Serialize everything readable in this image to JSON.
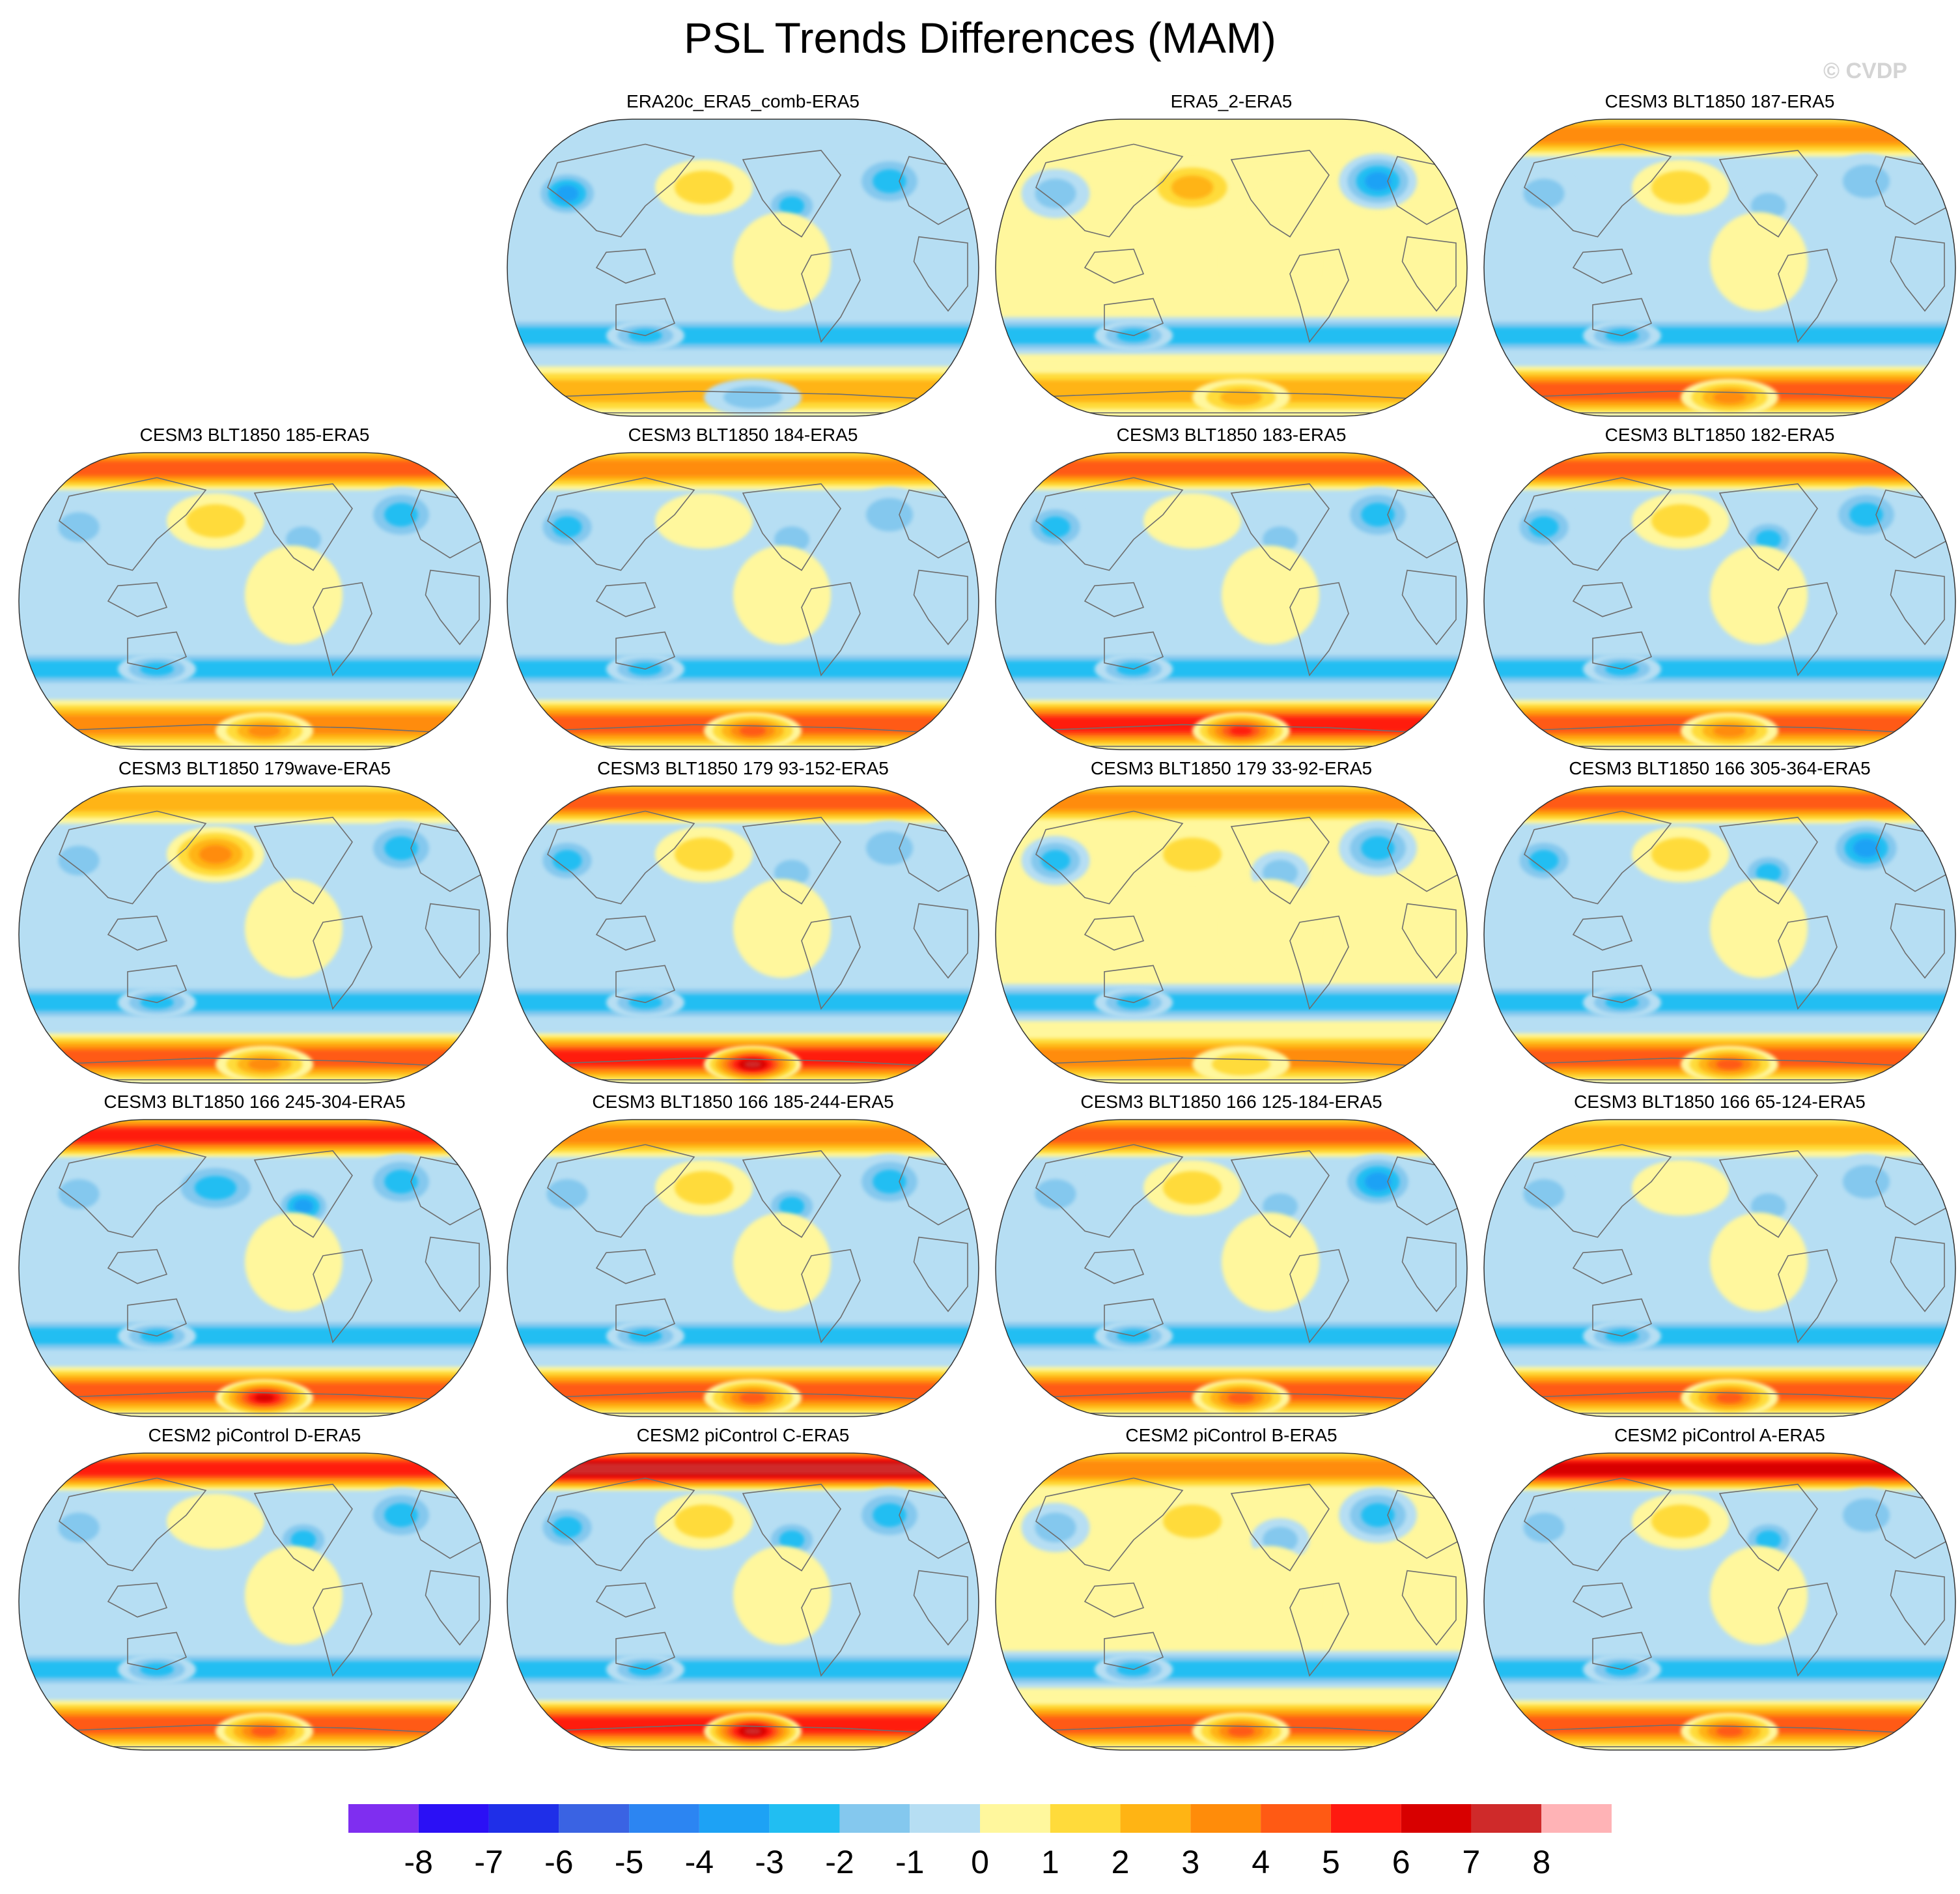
{
  "figure": {
    "title": "PSL Trends Differences (MAM)",
    "watermark": "© CVDP"
  },
  "colors": {
    "bins": [
      "#7f2ef0",
      "#2b10f5",
      "#1f2fe8",
      "#3a63e3",
      "#2c85f2",
      "#1da2f5",
      "#21bef2",
      "#84c8ee",
      "#b6def3",
      "#fff79d",
      "#ffdb3b",
      "#ffb414",
      "#ff8c0a",
      "#ff5a14",
      "#ff1a10",
      "#d80000",
      "#cf2a2a",
      "#ffb3b6"
    ],
    "outline": "#333333",
    "coast": "#6e6e6e"
  },
  "chart_data": {
    "type": "map-panel-grid",
    "projection": "robinson",
    "center_longitude": "pacific",
    "colorbar": {
      "ticks": [
        "-8",
        "-7",
        "-6",
        "-5",
        "-4",
        "-3",
        "-2",
        "-1",
        "0",
        "1",
        "2",
        "3",
        "4",
        "5",
        "6",
        "7",
        "8"
      ],
      "n_bins": 18
    },
    "panels": [
      {
        "title": "ERA20c_ERA5_comb-ERA5",
        "row": 0,
        "col": 1,
        "fields": {
          "np": -1,
          "tropics": -0.6,
          "so": 2.5,
          "ant": -2,
          "npac": 2,
          "natl": -3,
          "nam": -2.5,
          "asia": -4
        }
      },
      {
        "title": "ERA5_2-ERA5",
        "row": 0,
        "col": 2,
        "fields": {
          "np": 1,
          "tropics": 0.5,
          "so": 3,
          "ant": 3,
          "npac": 2.5,
          "natl": -4,
          "nam": 1,
          "asia": -1.5
        }
      },
      {
        "title": "CESM3 BLT1850 187-ERA5",
        "row": 0,
        "col": 3,
        "fields": {
          "np": 4,
          "tropics": -0.5,
          "so": 4.5,
          "ant": 3.5,
          "npac": 1.5,
          "natl": -2,
          "nam": -2,
          "asia": -2
        }
      },
      {
        "title": "CESM3 BLT1850 185-ERA5",
        "row": 1,
        "col": 0,
        "fields": {
          "np": 4.5,
          "tropics": -0.5,
          "so": 3.5,
          "ant": 4,
          "npac": 1.5,
          "natl": -2.5,
          "nam": -2,
          "asia": -2
        }
      },
      {
        "title": "CESM3 BLT1850 184-ERA5",
        "row": 1,
        "col": 1,
        "fields": {
          "np": 3.5,
          "tropics": -0.5,
          "so": 5,
          "ant": 5,
          "npac": 1,
          "natl": -2,
          "nam": -2,
          "asia": -2.5
        }
      },
      {
        "title": "CESM3 BLT1850 183-ERA5",
        "row": 1,
        "col": 2,
        "fields": {
          "np": 5,
          "tropics": -0.6,
          "so": 5.5,
          "ant": 5.5,
          "npac": 1,
          "natl": -3,
          "nam": -2,
          "asia": -2.5
        }
      },
      {
        "title": "CESM3 BLT1850 182-ERA5",
        "row": 1,
        "col": 3,
        "fields": {
          "np": 5,
          "tropics": -0.6,
          "so": 4.5,
          "ant": 4,
          "npac": 1.5,
          "natl": -3,
          "nam": -3,
          "asia": -2.5
        }
      },
      {
        "title": "CESM3 BLT1850 179wave-ERA5",
        "row": 2,
        "col": 0,
        "fields": {
          "np": 3,
          "tropics": -0.6,
          "so": 5,
          "ant": 4,
          "npac": 4,
          "natl": -2.5,
          "nam": -1,
          "asia": -2
        }
      },
      {
        "title": "CESM3 BLT1850 179 93-152-ERA5",
        "row": 2,
        "col": 1,
        "fields": {
          "np": 5,
          "tropics": -0.6,
          "so": 5.5,
          "ant": 7.5,
          "npac": 1.5,
          "natl": -2,
          "nam": -1.5,
          "asia": -3
        }
      },
      {
        "title": "CESM3 BLT1850 179 33-92-ERA5",
        "row": 2,
        "col": 2,
        "fields": {
          "np": 3.5,
          "tropics": 0.4,
          "so": 4,
          "ant": 2,
          "npac": 2,
          "natl": -2.5,
          "nam": -2,
          "asia": -3
        }
      },
      {
        "title": "CESM3 BLT1850 166 305-364-ERA5",
        "row": 2,
        "col": 3,
        "fields": {
          "np": 4.5,
          "tropics": -0.6,
          "so": 5,
          "ant": 5,
          "npac": 2,
          "natl": -4,
          "nam": -3,
          "asia": -3
        }
      },
      {
        "title": "CESM3 BLT1850 166 245-304-ERA5",
        "row": 3,
        "col": 0,
        "fields": {
          "np": 6,
          "tropics": -0.6,
          "so": 5,
          "ant": 6.5,
          "npac": -3,
          "natl": -3,
          "nam": -3.5,
          "asia": -2
        }
      },
      {
        "title": "CESM3 BLT1850 166 185-244-ERA5",
        "row": 3,
        "col": 1,
        "fields": {
          "np": 3.5,
          "tropics": -0.5,
          "so": 5,
          "ant": 5,
          "npac": 1.5,
          "natl": -2.5,
          "nam": -3,
          "asia": -2
        }
      },
      {
        "title": "CESM3 BLT1850 166 125-184-ERA5",
        "row": 3,
        "col": 2,
        "fields": {
          "np": 5,
          "tropics": -0.6,
          "so": 5,
          "ant": 5,
          "npac": 1.5,
          "natl": -3.5,
          "nam": -2,
          "asia": -2
        }
      },
      {
        "title": "CESM3 BLT1850 166 65-124-ERA5",
        "row": 3,
        "col": 3,
        "fields": {
          "np": 3,
          "tropics": -0.5,
          "so": 4.5,
          "ant": 4.5,
          "npac": 0.5,
          "natl": -2,
          "nam": -1.5,
          "asia": -2
        }
      },
      {
        "title": "CESM2 piControl D-ERA5",
        "row": 4,
        "col": 0,
        "fields": {
          "np": 5.5,
          "tropics": -0.6,
          "so": 5,
          "ant": 5,
          "npac": 1,
          "natl": -2.5,
          "nam": -3,
          "asia": -2
        }
      },
      {
        "title": "CESM2 piControl C-ERA5",
        "row": 4,
        "col": 1,
        "fields": {
          "np": 7.5,
          "tropics": -0.6,
          "so": 5.5,
          "ant": 7.5,
          "npac": 1.5,
          "natl": -3,
          "nam": -3,
          "asia": -3
        }
      },
      {
        "title": "CESM2 piControl B-ERA5",
        "row": 4,
        "col": 2,
        "fields": {
          "np": 3.5,
          "tropics": 0.3,
          "so": 4.5,
          "ant": 4.5,
          "npac": 1.5,
          "natl": -2.5,
          "nam": -1.5,
          "asia": -2
        }
      },
      {
        "title": "CESM2 piControl A-ERA5",
        "row": 4,
        "col": 3,
        "fields": {
          "np": 6.5,
          "tropics": -0.5,
          "so": 5,
          "ant": 5,
          "npac": 2,
          "natl": -2,
          "nam": -2.5,
          "asia": -2
        }
      }
    ]
  }
}
